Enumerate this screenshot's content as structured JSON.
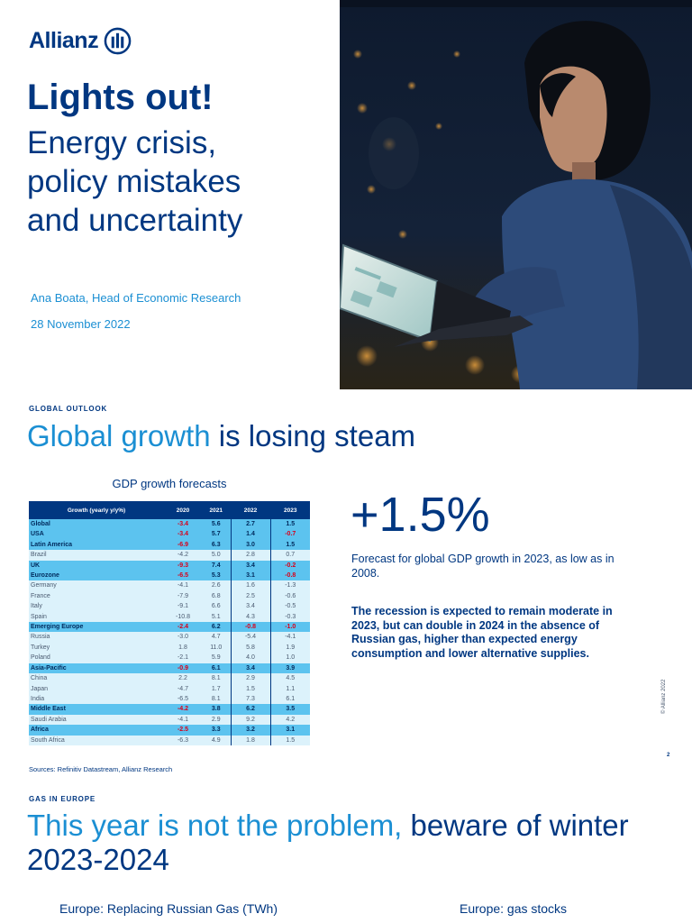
{
  "slide1": {
    "logo_text": "Allianz",
    "title": "Lights out!",
    "subtitle_lines": [
      "Energy crisis,",
      "policy mistakes",
      "and uncertainty"
    ],
    "author": "Ana Boata, Head of Economic Research",
    "date": "28 November 2022"
  },
  "slide2": {
    "kicker": "GLOBAL OUTLOOK",
    "headline_highlight": "Global growth",
    "headline_rest": " is losing steam",
    "table_title": "GDP growth forecasts",
    "table": {
      "headers": [
        "Growth (yearly y/y%)",
        "2020",
        "2021",
        "2022",
        "2023"
      ],
      "rows": [
        {
          "name": "Global",
          "level": 1,
          "values": [
            "-3.4",
            "5.6",
            "2.7",
            "1.5"
          ]
        },
        {
          "name": "USA",
          "level": 1,
          "values": [
            "-3.4",
            "5.7",
            "1.4",
            "-0.7"
          ]
        },
        {
          "name": "Latin America",
          "level": 1,
          "values": [
            "-6.9",
            "6.3",
            "3.0",
            "1.5"
          ]
        },
        {
          "name": "Brazil",
          "level": 2,
          "values": [
            "-4.2",
            "5.0",
            "2.8",
            "0.7"
          ]
        },
        {
          "name": "UK",
          "level": 1,
          "values": [
            "-9.3",
            "7.4",
            "3.4",
            "-0.2"
          ]
        },
        {
          "name": "Eurozone",
          "level": 1,
          "values": [
            "-6.5",
            "5.3",
            "3.1",
            "-0.8"
          ]
        },
        {
          "name": "Germany",
          "level": 2,
          "values": [
            "-4.1",
            "2.6",
            "1.6",
            "-1.3"
          ]
        },
        {
          "name": "France",
          "level": 2,
          "values": [
            "-7.9",
            "6.8",
            "2.5",
            "-0.6"
          ]
        },
        {
          "name": "Italy",
          "level": 2,
          "values": [
            "-9.1",
            "6.6",
            "3.4",
            "-0.5"
          ]
        },
        {
          "name": "Spain",
          "level": 2,
          "values": [
            "-10.8",
            "5.1",
            "4.3",
            "-0.3"
          ]
        },
        {
          "name": "Emerging Europe",
          "level": 1,
          "values": [
            "-2.4",
            "6.2",
            "-0.8",
            "-1.0"
          ]
        },
        {
          "name": "Russia",
          "level": 2,
          "values": [
            "-3.0",
            "4.7",
            "-5.4",
            "-4.1"
          ]
        },
        {
          "name": "Turkey",
          "level": 2,
          "values": [
            "1.8",
            "11.0",
            "5.8",
            "1.9"
          ]
        },
        {
          "name": "Poland",
          "level": 2,
          "values": [
            "-2.1",
            "5.9",
            "4.0",
            "1.0"
          ]
        },
        {
          "name": "Asia-Pacific",
          "level": 1,
          "values": [
            "-0.9",
            "6.1",
            "3.4",
            "3.9"
          ]
        },
        {
          "name": "China",
          "level": 2,
          "values": [
            "2.2",
            "8.1",
            "2.9",
            "4.5"
          ]
        },
        {
          "name": "Japan",
          "level": 2,
          "values": [
            "-4.7",
            "1.7",
            "1.5",
            "1.1"
          ]
        },
        {
          "name": "India",
          "level": 2,
          "values": [
            "-6.5",
            "8.1",
            "7.3",
            "6.1"
          ]
        },
        {
          "name": "Middle East",
          "level": 1,
          "values": [
            "-4.2",
            "3.8",
            "6.2",
            "3.5"
          ]
        },
        {
          "name": "Saudi Arabia",
          "level": 2,
          "values": [
            "-4.1",
            "2.9",
            "9.2",
            "4.2"
          ]
        },
        {
          "name": "Africa",
          "level": 1,
          "values": [
            "-2.5",
            "3.3",
            "3.2",
            "3.1"
          ]
        },
        {
          "name": "South Africa",
          "level": 2,
          "values": [
            "-6.3",
            "4.9",
            "1.8",
            "1.5"
          ]
        }
      ]
    },
    "sources": "Sources: Refinitiv Datastream, Allianz Research",
    "big_number": "+1.5%",
    "forecast_text": "Forecast for global GDP growth in 2023, as low as in 2008.",
    "recession_text": "The recession is expected to remain moderate in 2023, but can double in 2024 in the absence of Russian gas, higher than expected energy consumption and lower alternative supplies.",
    "copyright": "© Allianz 2022",
    "page_number": "2"
  },
  "slide3": {
    "kicker": "GAS IN EUROPE",
    "headline_highlight": "This year is not the problem,",
    "headline_rest": " beware of winter 2023-2024",
    "chart_title_left": "Europe: Replacing Russian Gas (TWh)",
    "chart_title_right": "Europe: gas stocks"
  },
  "colors": {
    "brand_dark": "#003781",
    "brand_light": "#1b8fd3",
    "table_region": "#5cc3ef",
    "table_country": "#dcf2fb",
    "negative": "#e3001b"
  }
}
